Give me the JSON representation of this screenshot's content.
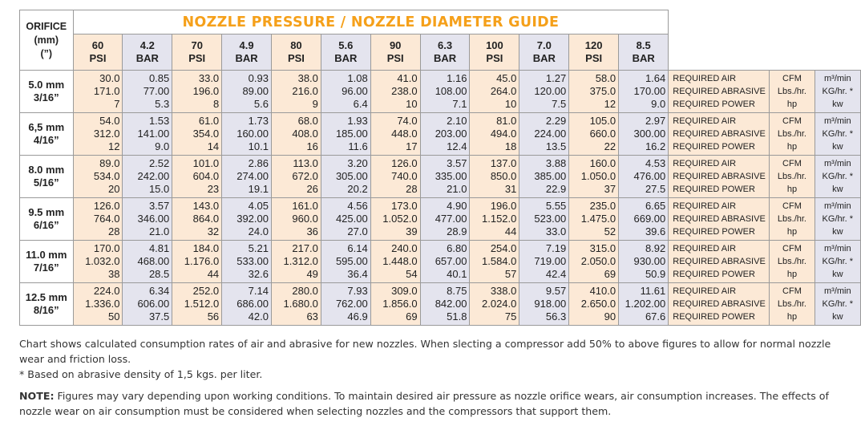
{
  "table": {
    "title": "NOZZLE PRESSURE / NOZZLE DIAMETER GUIDE",
    "orifice_header": [
      "ORIFICE",
      "(mm)",
      "(”)"
    ],
    "pressure_columns": [
      {
        "value": "60",
        "unit": "PSI"
      },
      {
        "value": "4.2",
        "unit": "BAR"
      },
      {
        "value": "70",
        "unit": "PSI"
      },
      {
        "value": "4.9",
        "unit": "BAR"
      },
      {
        "value": "80",
        "unit": "PSI"
      },
      {
        "value": "5.6",
        "unit": "BAR"
      },
      {
        "value": "90",
        "unit": "PSI"
      },
      {
        "value": "6.3",
        "unit": "BAR"
      },
      {
        "value": "100",
        "unit": "PSI"
      },
      {
        "value": "7.0",
        "unit": "BAR"
      },
      {
        "value": "120",
        "unit": "PSI"
      },
      {
        "value": "8.5",
        "unit": "BAR"
      }
    ],
    "row_labels": [
      "REQUIRED AIR",
      "REQUIRED ABRASIVE",
      "REQUIRED POWER"
    ],
    "units_imperial": [
      "CFM",
      "Lbs./hr.",
      "hp"
    ],
    "units_metric": [
      "m³/min",
      "KG/hr. *",
      "kw"
    ],
    "colors": {
      "psi_column": "#fce9d6",
      "bar_column": "#e4e4ee",
      "title": "#f5a01a"
    },
    "rows": [
      {
        "mm": "5.0 mm",
        "inch": "3/16”",
        "values": [
          [
            "30.0",
            "171.0",
            "7"
          ],
          [
            "0.85",
            "77.00",
            "5.3"
          ],
          [
            "33.0",
            "196.0",
            "8"
          ],
          [
            "0.93",
            "89.00",
            "5.6"
          ],
          [
            "38.0",
            "216.0",
            "9"
          ],
          [
            "1.08",
            "96.00",
            "6.4"
          ],
          [
            "41.0",
            "238.0",
            "10"
          ],
          [
            "1.16",
            "108.00",
            "7.1"
          ],
          [
            "45.0",
            "264.0",
            "10"
          ],
          [
            "1.27",
            "120.00",
            "7.5"
          ],
          [
            "58.0",
            "375.0",
            "12"
          ],
          [
            "1.64",
            "170.00",
            "9.0"
          ]
        ]
      },
      {
        "mm": "6,5 mm",
        "inch": "4/16”",
        "values": [
          [
            "54.0",
            "312.0",
            "12"
          ],
          [
            "1.53",
            "141.00",
            "9.0"
          ],
          [
            "61.0",
            "354.0",
            "14"
          ],
          [
            "1.73",
            "160.00",
            "10.1"
          ],
          [
            "68.0",
            "408.0",
            "16"
          ],
          [
            "1.93",
            "185.00",
            "11.6"
          ],
          [
            "74.0",
            "448.0",
            "17"
          ],
          [
            "2.10",
            "203.00",
            "12.4"
          ],
          [
            "81.0",
            "494.0",
            "18"
          ],
          [
            "2.29",
            "224.00",
            "13.5"
          ],
          [
            "105.0",
            "660.0",
            "22"
          ],
          [
            "2.97",
            "300.00",
            "16.2"
          ]
        ]
      },
      {
        "mm": "8.0 mm",
        "inch": "5/16”",
        "values": [
          [
            "89.0",
            "534.0",
            "20"
          ],
          [
            "2.52",
            "242.00",
            "15.0"
          ],
          [
            "101.0",
            "604.0",
            "23"
          ],
          [
            "2.86",
            "274.00",
            "19.1"
          ],
          [
            "113.0",
            "672.0",
            "26"
          ],
          [
            "3.20",
            "305.00",
            "20.2"
          ],
          [
            "126.0",
            "740.0",
            "28"
          ],
          [
            "3.57",
            "335.00",
            "21.0"
          ],
          [
            "137.0",
            "850.0",
            "31"
          ],
          [
            "3.88",
            "385.00",
            "22.9"
          ],
          [
            "160.0",
            "1.050.0",
            "37"
          ],
          [
            "4.53",
            "476.00",
            "27.5"
          ]
        ]
      },
      {
        "mm": "9.5 mm",
        "inch": "6/16”",
        "values": [
          [
            "126.0",
            "764.0",
            "28"
          ],
          [
            "3.57",
            "346.00",
            "21.0"
          ],
          [
            "143.0",
            "864.0",
            "32"
          ],
          [
            "4.05",
            "392.00",
            "24.0"
          ],
          [
            "161.0",
            "960.0",
            "36"
          ],
          [
            "4.56",
            "425.00",
            "27.0"
          ],
          [
            "173.0",
            "1.052.0",
            "39"
          ],
          [
            "4.90",
            "477.00",
            "28.9"
          ],
          [
            "196.0",
            "1.152.0",
            "44"
          ],
          [
            "5.55",
            "523.00",
            "33.0"
          ],
          [
            "235.0",
            "1.475.0",
            "52"
          ],
          [
            "6.65",
            "669.00",
            "39.6"
          ]
        ]
      },
      {
        "mm": "11.0 mm",
        "inch": "7/16”",
        "values": [
          [
            "170.0",
            "1.032.0",
            "38"
          ],
          [
            "4.81",
            "468.00",
            "28.5"
          ],
          [
            "184.0",
            "1.176.0",
            "44"
          ],
          [
            "5.21",
            "533.00",
            "32.6"
          ],
          [
            "217.0",
            "1.312.0",
            "49"
          ],
          [
            "6.14",
            "595.00",
            "36.4"
          ],
          [
            "240.0",
            "1.448.0",
            "54"
          ],
          [
            "6.80",
            "657.00",
            "40.1"
          ],
          [
            "254.0",
            "1.584.0",
            "57"
          ],
          [
            "7.19",
            "719.00",
            "42.4"
          ],
          [
            "315.0",
            "2.050.0",
            "69"
          ],
          [
            "8.92",
            "930.00",
            "50.9"
          ]
        ]
      },
      {
        "mm": "12.5 mm",
        "inch": "8/16”",
        "values": [
          [
            "224.0",
            "1.336.0",
            "50"
          ],
          [
            "6.34",
            "606.00",
            "37.5"
          ],
          [
            "252.0",
            "1.512.0",
            "56"
          ],
          [
            "7.14",
            "686.00",
            "42.0"
          ],
          [
            "280.0",
            "1.680.0",
            "63"
          ],
          [
            "7.93",
            "762.00",
            "46.9"
          ],
          [
            "309.0",
            "1.856.0",
            "69"
          ],
          [
            "8.75",
            "842.00",
            "51.8"
          ],
          [
            "338.0",
            "2.024.0",
            "75"
          ],
          [
            "9.57",
            "918.00",
            "56.3"
          ],
          [
            "410.0",
            "2.650.0",
            "90"
          ],
          [
            "11.61",
            "1.202.00",
            "67.6"
          ]
        ]
      }
    ]
  },
  "notes": {
    "line1": "Chart shows calculated consumption rates of air and abrasive for new nozzles. When slecting a compressor add 50% to above figures to allow for normal nozzle wear and friction loss.",
    "line2": "* Based on abrasive density of 1,5 kgs. per liter.",
    "note_label": "NOTE:",
    "note_text": " Figures may vary depending upon working conditions. To maintain desired air pressure as nozzle orifice wears, air consumption increases. The effects of nozzle wear on air consumption must be considered when selecting nozzles and the compressors that support them."
  }
}
